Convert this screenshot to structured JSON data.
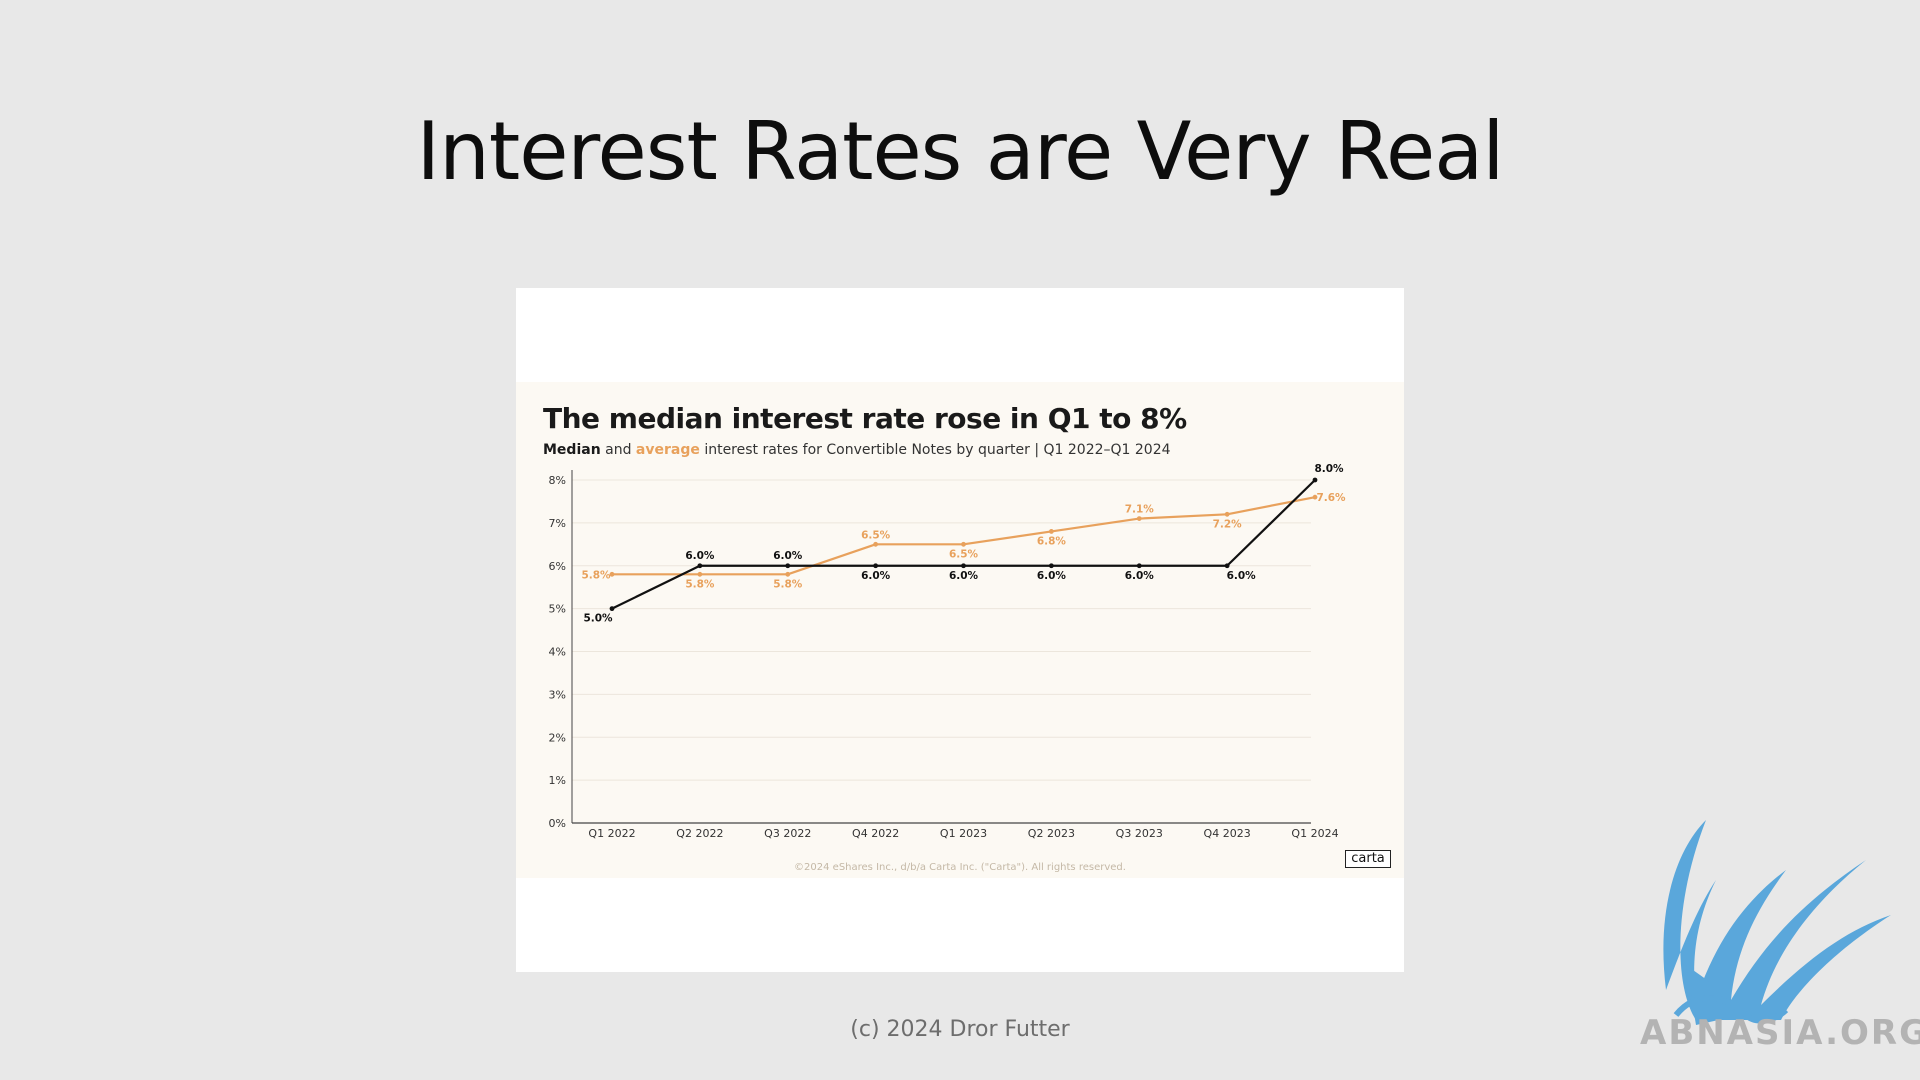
{
  "slide": {
    "title": "Interest Rates are Very Real",
    "footer": "(c) 2024 Dror Futter",
    "watermark_text": "ABNASIA.ORG"
  },
  "chart_data": {
    "type": "line",
    "title": "The median interest rate rose in Q1 to 8%",
    "subtitle_parts": {
      "median": "Median",
      "and": "and",
      "average": "average",
      "rest": "interest rates for Convertible Notes by quarter |  Q1 2022–Q1 2024"
    },
    "categories": [
      "Q1 2022",
      "Q2 2022",
      "Q3 2022",
      "Q4 2022",
      "Q1 2023",
      "Q2 2023",
      "Q3 2023",
      "Q4 2023",
      "Q1 2024"
    ],
    "series": [
      {
        "name": "Median",
        "color": "#111111",
        "values": [
          5.0,
          6.0,
          6.0,
          6.0,
          6.0,
          6.0,
          6.0,
          6.0,
          8.0
        ],
        "labels": [
          "5.0%",
          "6.0%",
          "6.0%",
          "6.0%",
          "6.0%",
          "6.0%",
          "6.0%",
          "6.0%",
          "8.0%"
        ]
      },
      {
        "name": "average",
        "color": "#e8a15c",
        "values": [
          5.8,
          5.8,
          5.8,
          6.5,
          6.5,
          6.8,
          7.1,
          7.2,
          7.6
        ],
        "labels": [
          "5.8%",
          "5.8%",
          "5.8%",
          "6.5%",
          "6.5%",
          "6.8%",
          "7.1%",
          "7.2%",
          "7.6%"
        ]
      }
    ],
    "y_ticks": [
      {
        "value": 0,
        "label": "0%"
      },
      {
        "value": 1,
        "label": "1%"
      },
      {
        "value": 2,
        "label": "2%"
      },
      {
        "value": 3,
        "label": "3%"
      },
      {
        "value": 4,
        "label": "4%"
      },
      {
        "value": 5,
        "label": "5%"
      },
      {
        "value": 6,
        "label": "6%"
      },
      {
        "value": 7,
        "label": "7%"
      },
      {
        "value": 8,
        "label": "8%"
      }
    ],
    "ylim": [
      0,
      8
    ],
    "grid": true,
    "source_note": "©2024 eShares Inc., d/b/a Carta Inc. (\"Carta\"). All rights reserved.",
    "logo_text": "carta"
  }
}
